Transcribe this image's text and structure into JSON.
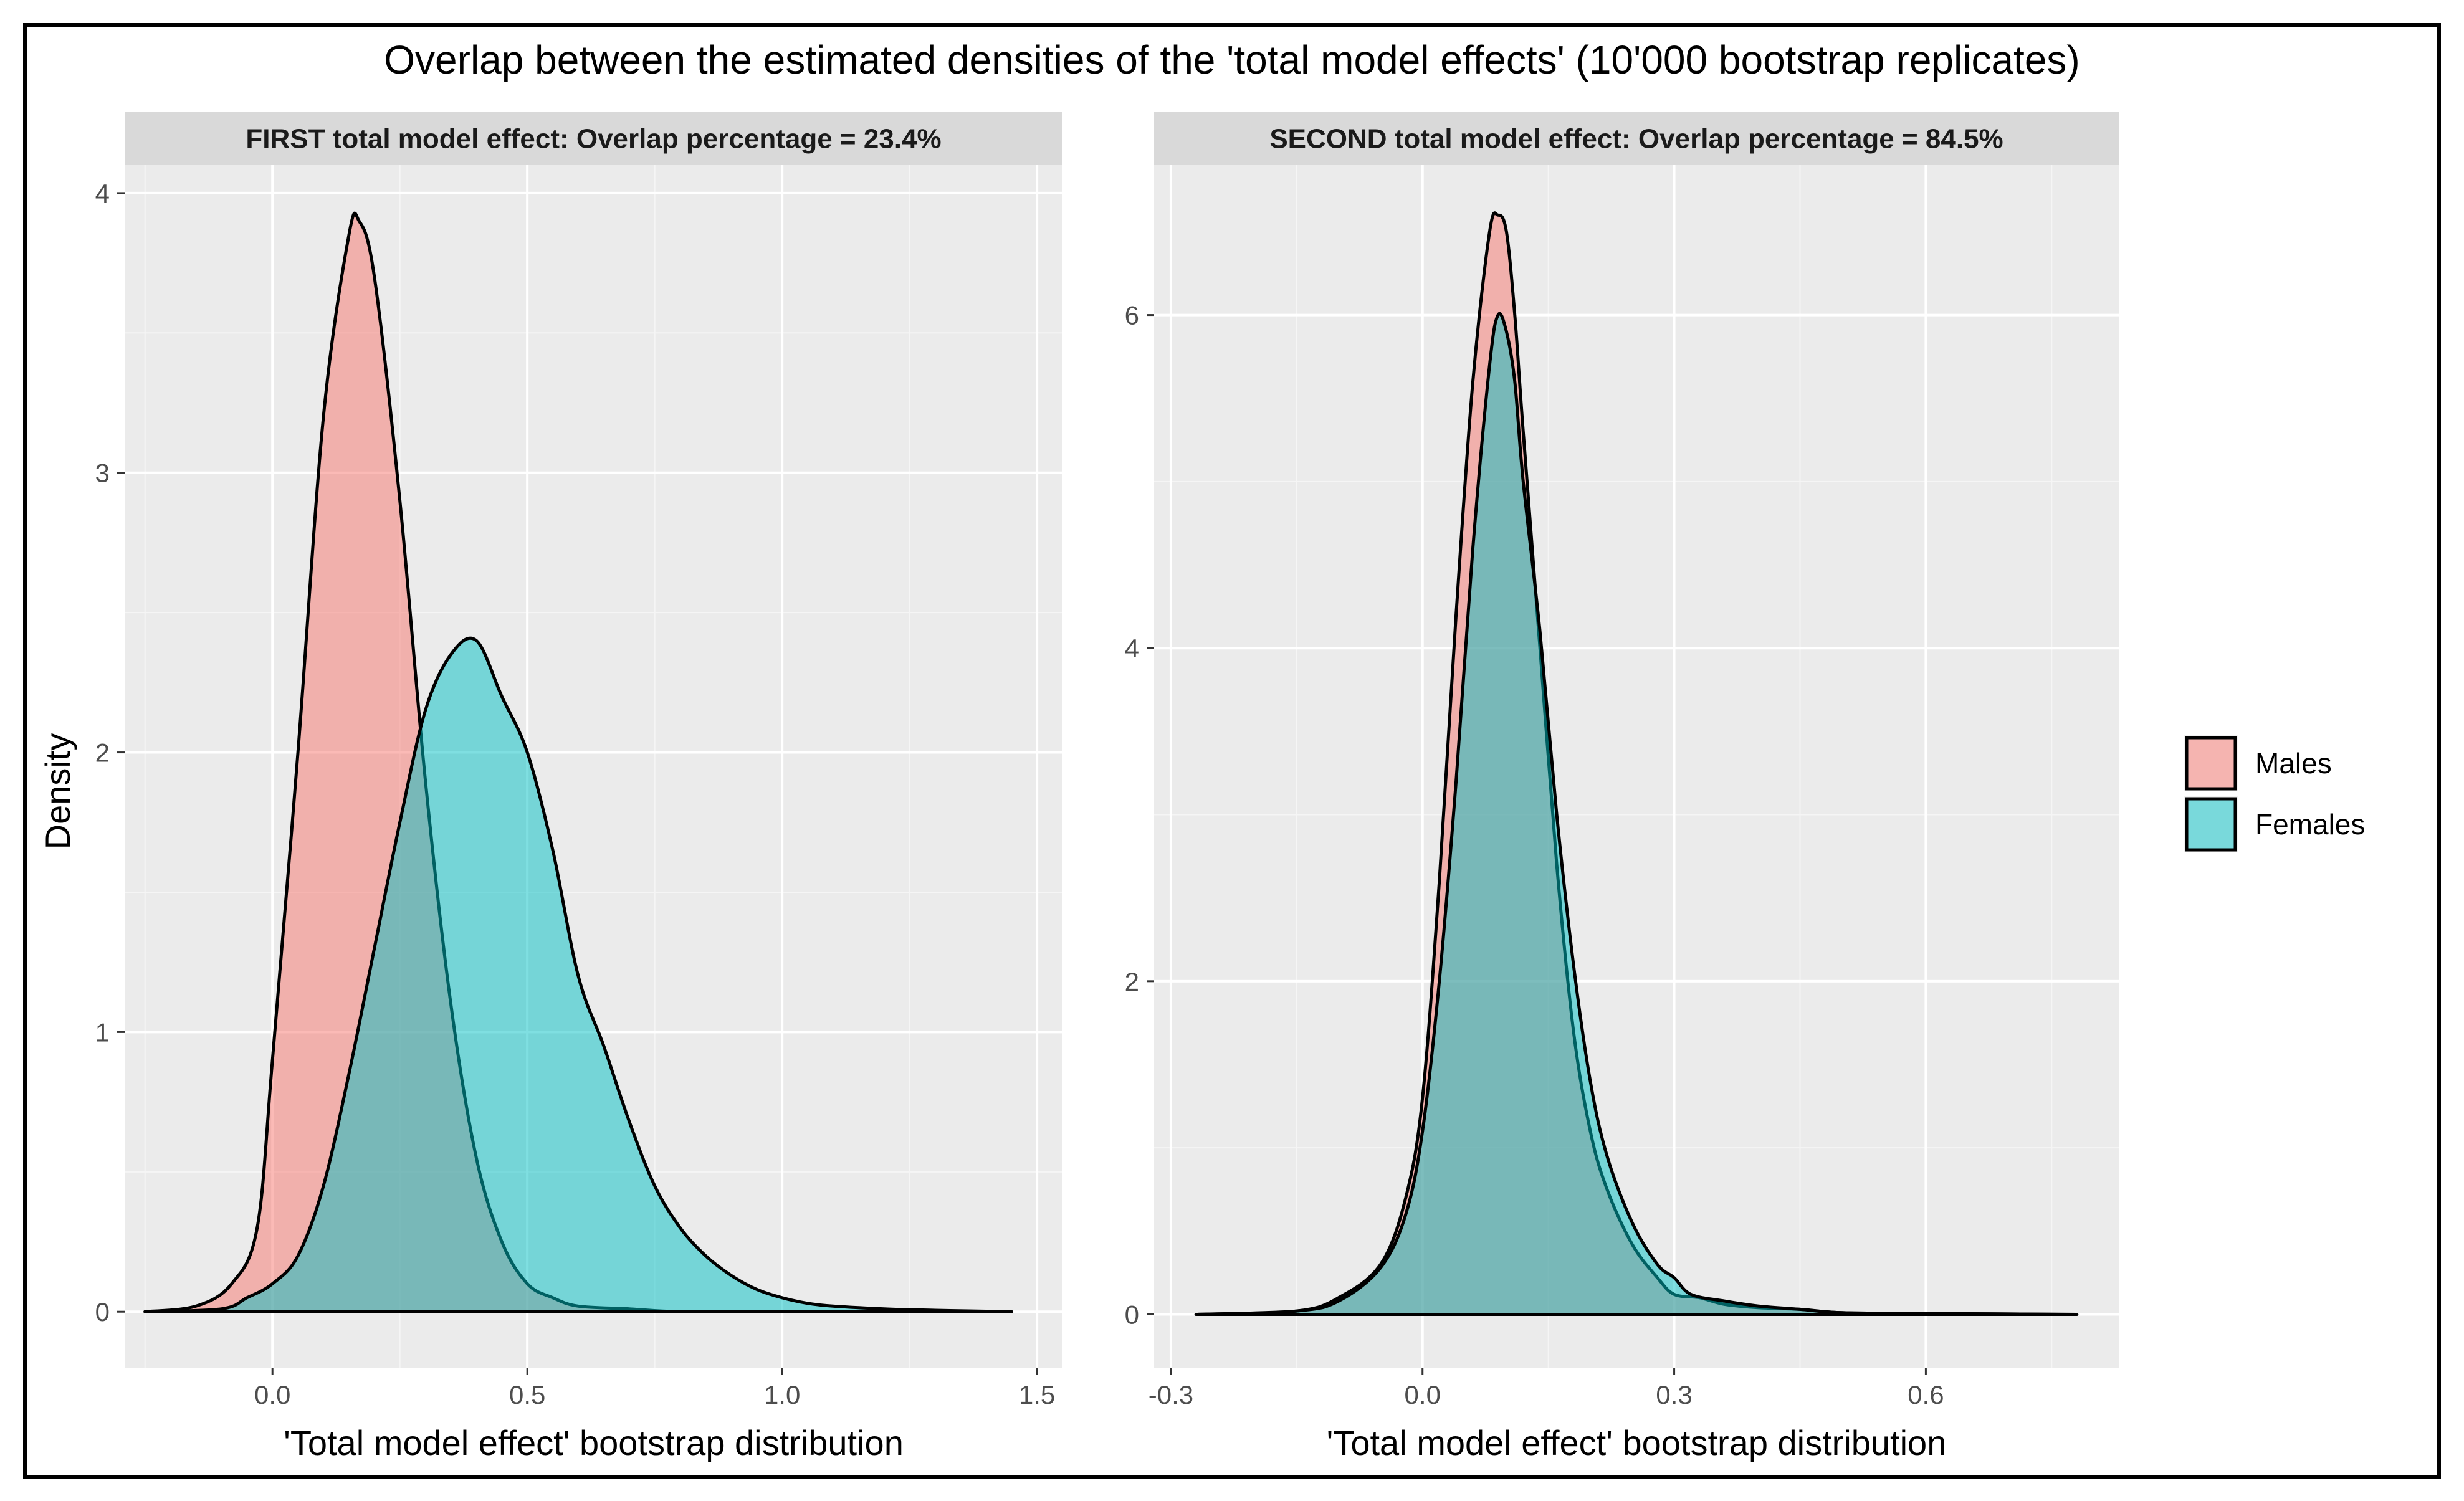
{
  "chart_data": {
    "type": "area",
    "title": "Overlap between the estimated densities of the 'total model effects' (10'000 bootstrap replicates)",
    "ylabel": "Density",
    "legend": {
      "position": "right",
      "entries": [
        {
          "name": "Males",
          "color": "#F8766D"
        },
        {
          "name": "Females",
          "color": "#00BFC4"
        }
      ]
    },
    "panels": [
      {
        "strip": "FIRST total model effect: Overlap percentage = 23.4%",
        "xlabel": "'Total model effect' bootstrap distribution",
        "xlim": [
          -0.29,
          1.55
        ],
        "ylim": [
          -0.2,
          4.1
        ],
        "x_ticks": [
          {
            "v": 0.0,
            "label": "0.0"
          },
          {
            "v": 0.5,
            "label": "0.5"
          },
          {
            "v": 1.0,
            "label": "1.0"
          },
          {
            "v": 1.5,
            "label": "1.5"
          }
        ],
        "y_ticks": [
          {
            "v": 0,
            "label": "0"
          },
          {
            "v": 1,
            "label": "1"
          },
          {
            "v": 2,
            "label": "2"
          },
          {
            "v": 3,
            "label": "3"
          },
          {
            "v": 4,
            "label": "4"
          }
        ],
        "series": [
          {
            "name": "Males",
            "x": [
              -0.25,
              -0.15,
              -0.08,
              -0.03,
              0.0,
              0.05,
              0.1,
              0.15,
              0.17,
              0.2,
              0.25,
              0.3,
              0.35,
              0.4,
              0.45,
              0.5,
              0.55,
              0.6,
              0.7,
              0.8,
              1.0,
              1.2,
              1.45
            ],
            "y": [
              0,
              0.02,
              0.1,
              0.3,
              0.9,
              2.0,
              3.2,
              3.85,
              3.9,
              3.7,
              2.9,
              1.9,
              1.1,
              0.55,
              0.25,
              0.1,
              0.05,
              0.02,
              0.01,
              0.0,
              0.0,
              0.0,
              0
            ]
          },
          {
            "name": "Females",
            "x": [
              -0.25,
              -0.1,
              -0.05,
              0.0,
              0.05,
              0.1,
              0.15,
              0.2,
              0.25,
              0.3,
              0.35,
              0.4,
              0.45,
              0.5,
              0.55,
              0.6,
              0.65,
              0.7,
              0.75,
              0.8,
              0.85,
              0.9,
              0.95,
              1.0,
              1.05,
              1.1,
              1.2,
              1.3,
              1.45
            ],
            "y": [
              0,
              0.01,
              0.05,
              0.1,
              0.2,
              0.45,
              0.85,
              1.3,
              1.75,
              2.15,
              2.35,
              2.4,
              2.2,
              2.0,
              1.65,
              1.2,
              0.95,
              0.68,
              0.45,
              0.3,
              0.2,
              0.13,
              0.08,
              0.05,
              0.03,
              0.02,
              0.01,
              0.005,
              0
            ]
          }
        ]
      },
      {
        "strip": "SECOND total model effect: Overlap percentage = 84.5%",
        "xlabel": "'Total model effect' bootstrap distribution",
        "xlim": [
          -0.32,
          0.83
        ],
        "ylim": [
          -0.32,
          6.9
        ],
        "x_ticks": [
          {
            "v": -0.3,
            "label": "-0.3"
          },
          {
            "v": 0.0,
            "label": "0.0"
          },
          {
            "v": 0.3,
            "label": "0.3"
          },
          {
            "v": 0.6,
            "label": "0.6"
          }
        ],
        "y_ticks": [
          {
            "v": 0,
            "label": "0"
          },
          {
            "v": 2,
            "label": "2"
          },
          {
            "v": 4,
            "label": "4"
          },
          {
            "v": 6,
            "label": "6"
          }
        ],
        "series": [
          {
            "name": "Males",
            "x": [
              -0.27,
              -0.15,
              -0.1,
              -0.05,
              -0.02,
              0.0,
              0.02,
              0.04,
              0.06,
              0.08,
              0.09,
              0.1,
              0.11,
              0.12,
              0.14,
              0.16,
              0.18,
              0.2,
              0.22,
              0.25,
              0.28,
              0.3,
              0.33,
              0.36,
              0.4,
              0.45,
              0.5,
              0.6,
              0.78
            ],
            "y": [
              0,
              0.02,
              0.1,
              0.3,
              0.7,
              1.3,
              2.6,
              4.2,
              5.6,
              6.5,
              6.6,
              6.5,
              6.0,
              5.3,
              4.0,
              2.7,
              1.7,
              1.1,
              0.75,
              0.42,
              0.22,
              0.12,
              0.1,
              0.06,
              0.04,
              0.03,
              0.01,
              0.005,
              0
            ]
          },
          {
            "name": "Females",
            "x": [
              -0.27,
              -0.15,
              -0.1,
              -0.05,
              -0.02,
              0.0,
              0.02,
              0.04,
              0.06,
              0.08,
              0.09,
              0.1,
              0.11,
              0.12,
              0.14,
              0.16,
              0.18,
              0.2,
              0.22,
              0.25,
              0.28,
              0.3,
              0.32,
              0.36,
              0.4,
              0.45,
              0.5,
              0.6,
              0.78
            ],
            "y": [
              0,
              0.02,
              0.08,
              0.28,
              0.6,
              1.1,
              2.0,
              3.2,
              4.6,
              5.7,
              6.0,
              5.9,
              5.6,
              5.0,
              4.1,
              3.0,
              2.1,
              1.4,
              0.95,
              0.55,
              0.3,
              0.22,
              0.12,
              0.08,
              0.05,
              0.03,
              0.01,
              0.005,
              0
            ]
          }
        ]
      }
    ]
  }
}
